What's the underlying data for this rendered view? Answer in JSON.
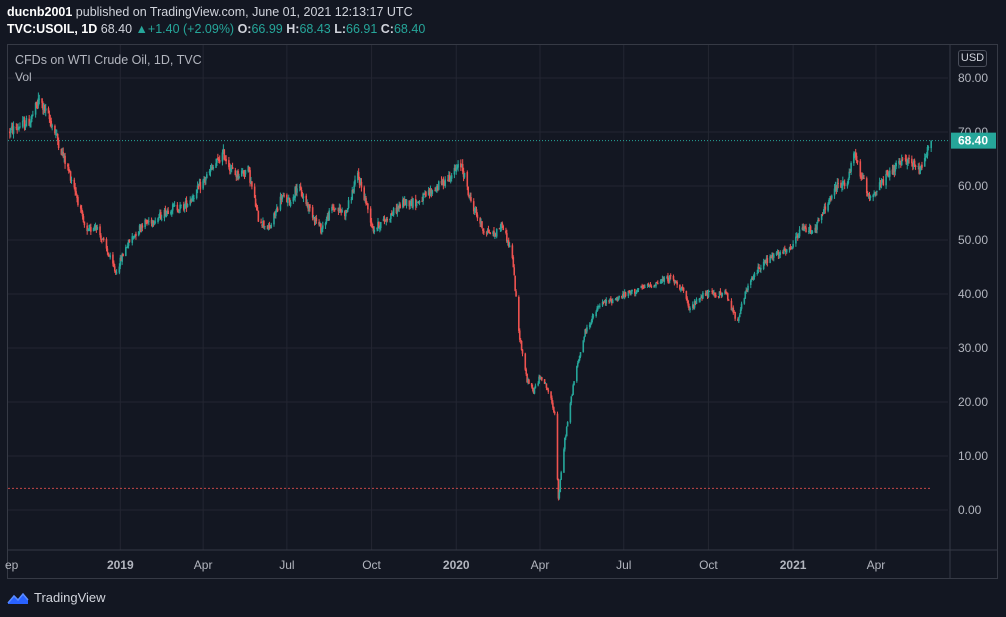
{
  "header": {
    "author": "ducnb2001",
    "published": "published on TradingView.com, June 01, 2021 12:13:17 UTC",
    "symbol": "TVC:USOIL, 1D",
    "last": "68.40",
    "change": "+1.40 (+2.09%)",
    "open_label": "O:",
    "open": "66.99",
    "high_label": "H:",
    "high": "68.43",
    "low_label": "L:",
    "low": "66.91",
    "close_label": "C:",
    "close": "68.40"
  },
  "pane": {
    "title": "CFDs on WTI Crude Oil, 1D, TVC",
    "volume_label": "Vol",
    "currency": "USD"
  },
  "footer": {
    "brand": "TradingView"
  },
  "colors": {
    "up": "#26a69a",
    "down": "#ef5350",
    "background": "#131722",
    "grid": "#232632",
    "last_price_label": "#26a69a"
  },
  "chart_data": {
    "type": "candlestick",
    "title": "CFDs on WTI Crude Oil, 1D, TVC",
    "ylim": [
      -8,
      84
    ],
    "y_ticks": [
      "80.00",
      "70.00",
      "60.00",
      "50.00",
      "40.00",
      "30.00",
      "20.00",
      "10.00",
      "0.00"
    ],
    "x_ticks": [
      {
        "label": "ep",
        "date": "2018-09-01"
      },
      {
        "label": "2019",
        "date": "2019-01-01",
        "bold": true
      },
      {
        "label": "Apr",
        "date": "2019-04-01"
      },
      {
        "label": "Jul",
        "date": "2019-07-01"
      },
      {
        "label": "Oct",
        "date": "2019-10-01"
      },
      {
        "label": "2020",
        "date": "2020-01-01",
        "bold": true
      },
      {
        "label": "Apr",
        "date": "2020-04-01"
      },
      {
        "label": "Jul",
        "date": "2020-07-01"
      },
      {
        "label": "Oct",
        "date": "2020-10-01"
      },
      {
        "label": "2021",
        "date": "2021-01-01",
        "bold": true
      },
      {
        "label": "Apr",
        "date": "2021-04-01"
      }
    ],
    "last_price": 68.4,
    "last_price_label": "68.40",
    "low_line": 4.0,
    "price_path": [
      [
        "2018-09-01",
        70
      ],
      [
        "2018-09-25",
        72
      ],
      [
        "2018-10-05",
        76
      ],
      [
        "2018-10-20",
        71
      ],
      [
        "2018-11-01",
        65
      ],
      [
        "2018-11-12",
        60
      ],
      [
        "2018-11-25",
        51
      ],
      [
        "2018-12-05",
        53
      ],
      [
        "2018-12-15",
        49
      ],
      [
        "2018-12-27",
        44
      ],
      [
        "2019-01-08",
        49
      ],
      [
        "2019-01-25",
        53
      ],
      [
        "2019-02-10",
        54
      ],
      [
        "2019-02-25",
        56
      ],
      [
        "2019-03-10",
        56
      ],
      [
        "2019-03-25",
        59
      ],
      [
        "2019-04-10",
        63
      ],
      [
        "2019-04-23",
        66
      ],
      [
        "2019-05-05",
        62
      ],
      [
        "2019-05-20",
        63
      ],
      [
        "2019-05-31",
        54
      ],
      [
        "2019-06-12",
        52
      ],
      [
        "2019-06-25",
        58
      ],
      [
        "2019-07-05",
        57
      ],
      [
        "2019-07-12",
        60
      ],
      [
        "2019-07-25",
        56
      ],
      [
        "2019-08-07",
        52
      ],
      [
        "2019-08-20",
        56
      ],
      [
        "2019-09-03",
        55
      ],
      [
        "2019-09-16",
        62
      ],
      [
        "2019-09-25",
        57
      ],
      [
        "2019-10-03",
        52
      ],
      [
        "2019-10-18",
        54
      ],
      [
        "2019-11-05",
        57
      ],
      [
        "2019-11-20",
        57
      ],
      [
        "2019-12-05",
        59
      ],
      [
        "2019-12-20",
        61
      ],
      [
        "2020-01-07",
        64
      ],
      [
        "2020-01-15",
        58
      ],
      [
        "2020-01-30",
        52
      ],
      [
        "2020-02-12",
        51
      ],
      [
        "2020-02-20",
        53
      ],
      [
        "2020-03-02",
        47
      ],
      [
        "2020-03-09",
        33
      ],
      [
        "2020-03-18",
        24
      ],
      [
        "2020-03-25",
        22
      ],
      [
        "2020-04-02",
        25
      ],
      [
        "2020-04-10",
        22
      ],
      [
        "2020-04-17",
        18
      ],
      [
        "2020-04-21",
        2
      ],
      [
        "2020-04-28",
        13
      ],
      [
        "2020-05-08",
        24
      ],
      [
        "2020-05-20",
        33
      ],
      [
        "2020-06-05",
        38
      ],
      [
        "2020-06-20",
        39
      ],
      [
        "2020-07-05",
        40
      ],
      [
        "2020-07-20",
        41
      ],
      [
        "2020-08-05",
        42
      ],
      [
        "2020-08-20",
        43
      ],
      [
        "2020-09-03",
        41
      ],
      [
        "2020-09-10",
        37
      ],
      [
        "2020-09-25",
        40
      ],
      [
        "2020-10-10",
        40
      ],
      [
        "2020-10-20",
        40
      ],
      [
        "2020-11-01",
        35
      ],
      [
        "2020-11-12",
        41
      ],
      [
        "2020-11-25",
        45
      ],
      [
        "2020-12-10",
        47
      ],
      [
        "2020-12-28",
        48
      ],
      [
        "2021-01-10",
        52
      ],
      [
        "2021-01-25",
        52
      ],
      [
        "2021-02-05",
        56
      ],
      [
        "2021-02-18",
        60
      ],
      [
        "2021-03-02",
        61
      ],
      [
        "2021-03-08",
        66
      ],
      [
        "2021-03-18",
        61
      ],
      [
        "2021-03-25",
        58
      ],
      [
        "2021-04-05",
        60
      ],
      [
        "2021-04-20",
        63
      ],
      [
        "2021-05-05",
        65
      ],
      [
        "2021-05-18",
        63
      ],
      [
        "2021-05-25",
        66
      ],
      [
        "2021-05-31",
        68.4
      ]
    ]
  }
}
